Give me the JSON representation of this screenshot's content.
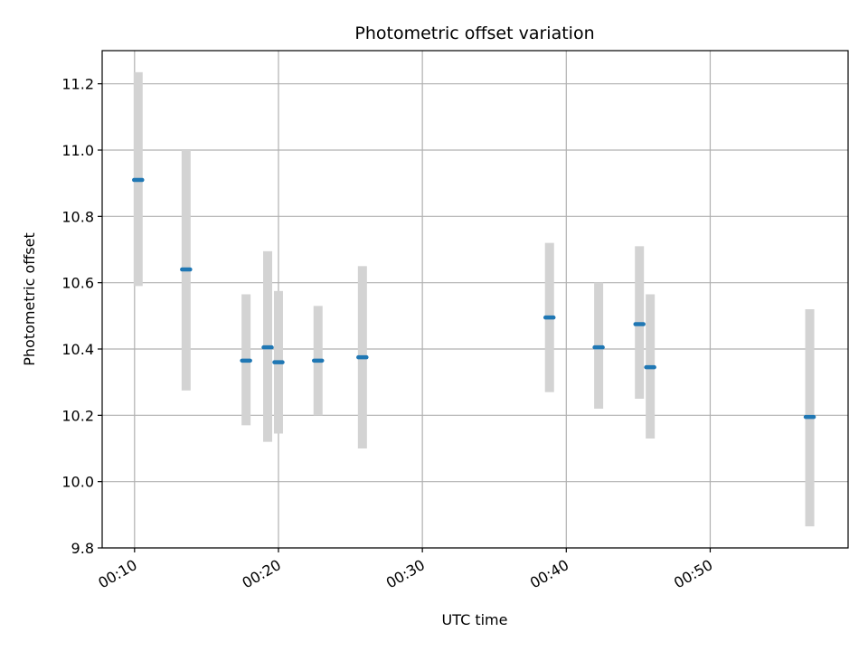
{
  "chart_data": {
    "type": "scatter",
    "title": "Photometric offset variation",
    "xlabel": "UTC time",
    "ylabel": "Photometric offset",
    "xlim": [
      "00:07:45",
      "00:59:35"
    ],
    "ylim": [
      9.8,
      11.3
    ],
    "x_ticks": [
      "00:10",
      "00:20",
      "00:30",
      "00:40",
      "00:50"
    ],
    "y_ticks": [
      "9.8",
      "10.0",
      "10.2",
      "10.4",
      "10.6",
      "10.8",
      "11.0",
      "11.2"
    ],
    "grid": true,
    "series": [
      {
        "points": [
          {
            "x": "00:10:15",
            "y": 10.91,
            "err_low": 10.59,
            "err_high": 11.235
          },
          {
            "x": "00:13:35",
            "y": 10.64,
            "err_low": 10.275,
            "err_high": 11.0
          },
          {
            "x": "00:17:45",
            "y": 10.365,
            "err_low": 10.17,
            "err_high": 10.565
          },
          {
            "x": "00:19:15",
            "y": 10.405,
            "err_low": 10.12,
            "err_high": 10.695
          },
          {
            "x": "00:20:00",
            "y": 10.36,
            "err_low": 10.145,
            "err_high": 10.575
          },
          {
            "x": "00:22:45",
            "y": 10.365,
            "err_low": 10.2,
            "err_high": 10.53
          },
          {
            "x": "00:25:50",
            "y": 10.375,
            "err_low": 10.1,
            "err_high": 10.65
          },
          {
            "x": "00:38:50",
            "y": 10.495,
            "err_low": 10.27,
            "err_high": 10.72
          },
          {
            "x": "00:42:15",
            "y": 10.405,
            "err_low": 10.22,
            "err_high": 10.6
          },
          {
            "x": "00:45:05",
            "y": 10.475,
            "err_low": 10.25,
            "err_high": 10.71
          },
          {
            "x": "00:45:50",
            "y": 10.345,
            "err_low": 10.13,
            "err_high": 10.565
          },
          {
            "x": "00:56:55",
            "y": 10.195,
            "err_low": 9.865,
            "err_high": 10.52
          }
        ]
      }
    ],
    "colors": {
      "marker": "#1f77b4",
      "errorbar": "#d3d3d3",
      "grid": "#b0b0b0",
      "axes": "#000000"
    }
  }
}
